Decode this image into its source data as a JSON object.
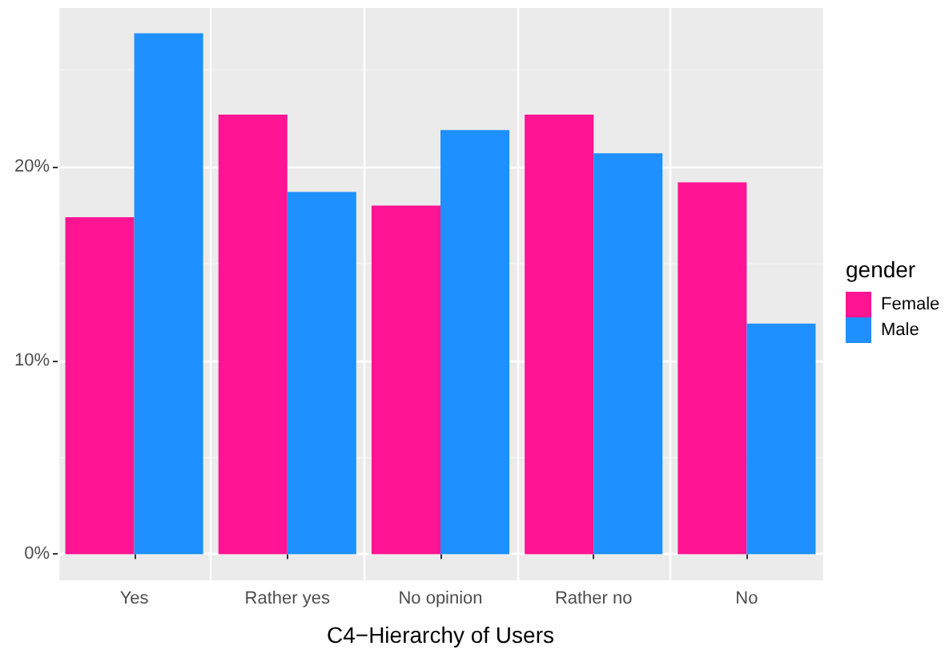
{
  "chart_data": {
    "type": "bar",
    "xlabel": "C4−Hierarchy of Users",
    "legend_title": "gender",
    "categories": [
      "Yes",
      "Rather yes",
      "No opinion",
      "Rather no",
      "No"
    ],
    "series": [
      {
        "name": "Female",
        "color": "#ff1493",
        "values": [
          17.4,
          22.7,
          18.0,
          22.7,
          19.2
        ]
      },
      {
        "name": "Male",
        "color": "#1e90ff",
        "values": [
          26.9,
          18.7,
          21.9,
          20.7,
          11.9
        ]
      }
    ],
    "ylim": [
      -1.35,
      28.2
    ],
    "yticks": [
      {
        "value": 0,
        "label": "0%"
      },
      {
        "value": 10,
        "label": "10%"
      },
      {
        "value": 20,
        "label": "20%"
      }
    ],
    "grid": true,
    "legend": "right"
  }
}
